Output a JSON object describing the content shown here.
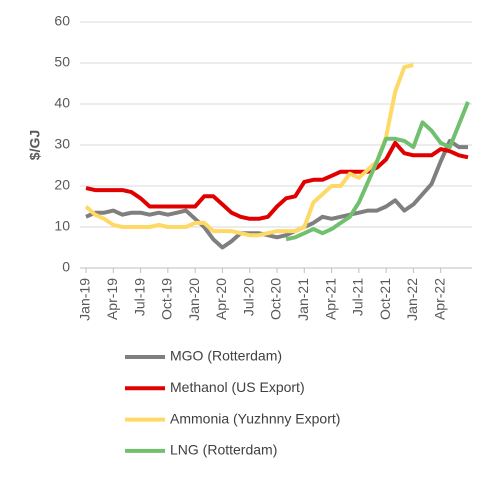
{
  "chart_data": {
    "type": "line",
    "y_label": "$/GJ",
    "categories": [
      "Jan-19",
      null,
      null,
      "Apr-19",
      null,
      null,
      "Jul-19",
      null,
      null,
      "Oct-19",
      null,
      null,
      "Jan-20",
      null,
      null,
      "Apr-20",
      null,
      null,
      "Jul-20",
      null,
      null,
      "Oct-20",
      null,
      null,
      "Jan-21",
      null,
      null,
      "Apr-21",
      null,
      null,
      "Jul-21",
      null,
      null,
      "Oct-21",
      null,
      null,
      "Jan-22",
      null,
      null,
      "Apr-22",
      null,
      null,
      null
    ],
    "series": [
      {
        "name": "MGO (Rotterdam)",
        "color": "#7f7f7f",
        "values": [
          12.5,
          13.5,
          13.5,
          14,
          13,
          13.5,
          13.5,
          13,
          13.5,
          13,
          13.5,
          14,
          12,
          10,
          7,
          5,
          6.5,
          8.5,
          8.5,
          8.5,
          8,
          7.5,
          8,
          9,
          10,
          11,
          12.5,
          12,
          12.5,
          13,
          13.5,
          14,
          14,
          15,
          16.5,
          14,
          15.5,
          18,
          20.5,
          26,
          31,
          29.5,
          29.5
        ]
      },
      {
        "name": "Methanol (US Export)",
        "color": "#e00000",
        "values": [
          19.5,
          19,
          19,
          19,
          19,
          18.5,
          17,
          15,
          15,
          15,
          15,
          15,
          15,
          17.5,
          17.5,
          15.5,
          13.5,
          12.5,
          12,
          12,
          12.5,
          15,
          17,
          17.5,
          21,
          21.5,
          21.5,
          22.5,
          23.5,
          23.5,
          23.5,
          23.5,
          24.5,
          26.5,
          30.5,
          28,
          27.5,
          27.5,
          27.5,
          29,
          28.5,
          27.5,
          27
        ]
      },
      {
        "name": "Ammonia (Yuzhnny Export)",
        "color": "#ffd966",
        "values": [
          15,
          13,
          12,
          10.5,
          10,
          10,
          10,
          10,
          10.5,
          10,
          10,
          10,
          11,
          11,
          9,
          9,
          9,
          8.5,
          8,
          8,
          8.5,
          9,
          9,
          9,
          10,
          16,
          18,
          20,
          20,
          23,
          22,
          24,
          26,
          32,
          43,
          49,
          49.5,
          null,
          null,
          null,
          null,
          null,
          null
        ]
      },
      {
        "name": "LNG (Rotterdam)",
        "color": "#70c070",
        "values": [
          null,
          null,
          null,
          null,
          null,
          null,
          null,
          null,
          null,
          null,
          null,
          null,
          null,
          null,
          null,
          null,
          null,
          null,
          null,
          null,
          null,
          null,
          7,
          7.5,
          8.5,
          9.5,
          8.5,
          9.5,
          11,
          12.5,
          16,
          21,
          26,
          31.5,
          31.5,
          31,
          29.5,
          35.5,
          33.5,
          30.5,
          29.5,
          35,
          40.5
        ]
      }
    ],
    "ylim": [
      0,
      60
    ],
    "yticks": [
      0,
      10,
      20,
      30,
      40,
      50,
      60
    ],
    "grid": true
  }
}
